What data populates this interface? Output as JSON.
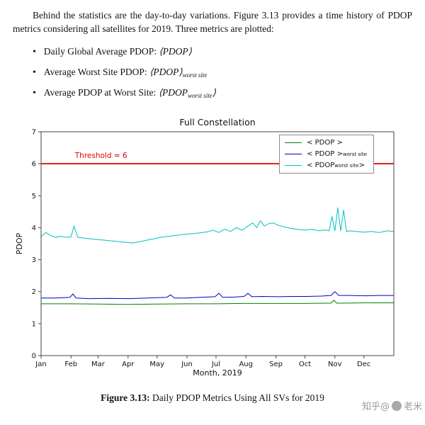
{
  "paragraph": "Behind the statistics are the day-to-day variations. Figure 3.13 provides a time history of PDOP metrics considering all satellites for 2019. Three metrics are plotted:",
  "bullets": [
    {
      "pre": "Daily Global Average PDOP: ",
      "math": "⟨PDOP⟩",
      "sub": "",
      "post": ""
    },
    {
      "pre": "Average Worst Site PDOP: ",
      "math": "⟨PDOP⟩",
      "sub": "worst site",
      "post": ""
    },
    {
      "pre": "Average PDOP at Worst Site: ",
      "math": "⟨PDOP",
      "sub": "worst site",
      "post": "⟩"
    }
  ],
  "caption": {
    "label": "Figure 3.13:",
    "text": " Daily PDOP Metrics Using All SVs for 2019"
  },
  "watermark": {
    "text1": "知乎@",
    "text2": "老米"
  },
  "chart_data": {
    "type": "line",
    "title": "Full Constellation",
    "xlabel": "Month, 2019",
    "ylabel": "PDOP",
    "xlim": [
      0,
      365
    ],
    "ylim": [
      0,
      7
    ],
    "y_ticks": [
      0,
      1,
      2,
      3,
      4,
      5,
      6,
      7
    ],
    "x_ticks": [
      0,
      31,
      59,
      90,
      120,
      151,
      181,
      212,
      243,
      273,
      304,
      334
    ],
    "x_tick_labels": [
      "Jan",
      "Feb",
      "Mar",
      "Apr",
      "May",
      "Jun",
      "Jul",
      "Aug",
      "Sep",
      "Oct",
      "Nov",
      "Dec"
    ],
    "grid": false,
    "legend_position": "upper right",
    "threshold": {
      "value": 6,
      "label": "Threshold = 6",
      "color": "#dd0000",
      "label_x": 35,
      "label_y": 6.18
    },
    "legend": [
      {
        "pre": "< PDOP >",
        "sub": "",
        "post": ""
      },
      {
        "pre": "< PDOP > ",
        "sub": "worst site",
        "post": ""
      },
      {
        "pre": "< PDOP",
        "sub": "worst site",
        "post": " >"
      }
    ],
    "series": [
      {
        "name": "daily-global-average-pdop",
        "color": "#008000",
        "width": 1,
        "x": [
          0,
          30,
          60,
          90,
          120,
          150,
          180,
          210,
          240,
          270,
          295,
          300,
          303,
          306,
          310,
          335,
          365
        ],
        "y": [
          1.62,
          1.62,
          1.61,
          1.6,
          1.61,
          1.62,
          1.62,
          1.63,
          1.63,
          1.63,
          1.64,
          1.64,
          1.73,
          1.64,
          1.64,
          1.65,
          1.65
        ]
      },
      {
        "name": "average-worst-site-pdop",
        "color": "#0000cc",
        "width": 1,
        "x": [
          0,
          15,
          30,
          33,
          36,
          50,
          70,
          90,
          110,
          130,
          134,
          138,
          150,
          165,
          180,
          184,
          188,
          200,
          210,
          214,
          218,
          230,
          245,
          260,
          275,
          290,
          300,
          304,
          308,
          320,
          335,
          350,
          365
        ],
        "y": [
          1.8,
          1.8,
          1.82,
          1.93,
          1.8,
          1.78,
          1.79,
          1.78,
          1.8,
          1.82,
          1.9,
          1.8,
          1.8,
          1.82,
          1.84,
          1.95,
          1.82,
          1.83,
          1.85,
          1.95,
          1.84,
          1.85,
          1.84,
          1.85,
          1.85,
          1.86,
          1.88,
          2.0,
          1.88,
          1.88,
          1.87,
          1.88,
          1.88
        ]
      },
      {
        "name": "average-pdop-at-worst-site",
        "color": "#00c0c0",
        "width": 1,
        "x": [
          0,
          5,
          10,
          15,
          20,
          26,
          31,
          34,
          38,
          45,
          55,
          65,
          75,
          85,
          95,
          100,
          108,
          116,
          124,
          132,
          140,
          148,
          156,
          164,
          172,
          178,
          184,
          190,
          196,
          202,
          208,
          214,
          219,
          223,
          227,
          231,
          235,
          240,
          245,
          252,
          258,
          265,
          273,
          280,
          288,
          294,
          298,
          301,
          304,
          307,
          310,
          313,
          316,
          320,
          326,
          334,
          342,
          350,
          358,
          365
        ],
        "y": [
          3.72,
          3.85,
          3.75,
          3.7,
          3.73,
          3.7,
          3.72,
          4.05,
          3.7,
          3.67,
          3.64,
          3.61,
          3.58,
          3.55,
          3.52,
          3.55,
          3.6,
          3.65,
          3.7,
          3.73,
          3.76,
          3.79,
          3.81,
          3.84,
          3.87,
          3.92,
          3.85,
          3.95,
          3.88,
          4.0,
          3.92,
          4.05,
          4.15,
          4.0,
          4.22,
          4.05,
          4.12,
          4.15,
          4.08,
          4.02,
          3.98,
          3.95,
          3.92,
          3.95,
          3.9,
          3.93,
          3.9,
          4.35,
          3.9,
          4.62,
          3.9,
          4.55,
          3.88,
          3.9,
          3.88,
          3.86,
          3.88,
          3.85,
          3.9,
          3.88
        ]
      }
    ]
  }
}
